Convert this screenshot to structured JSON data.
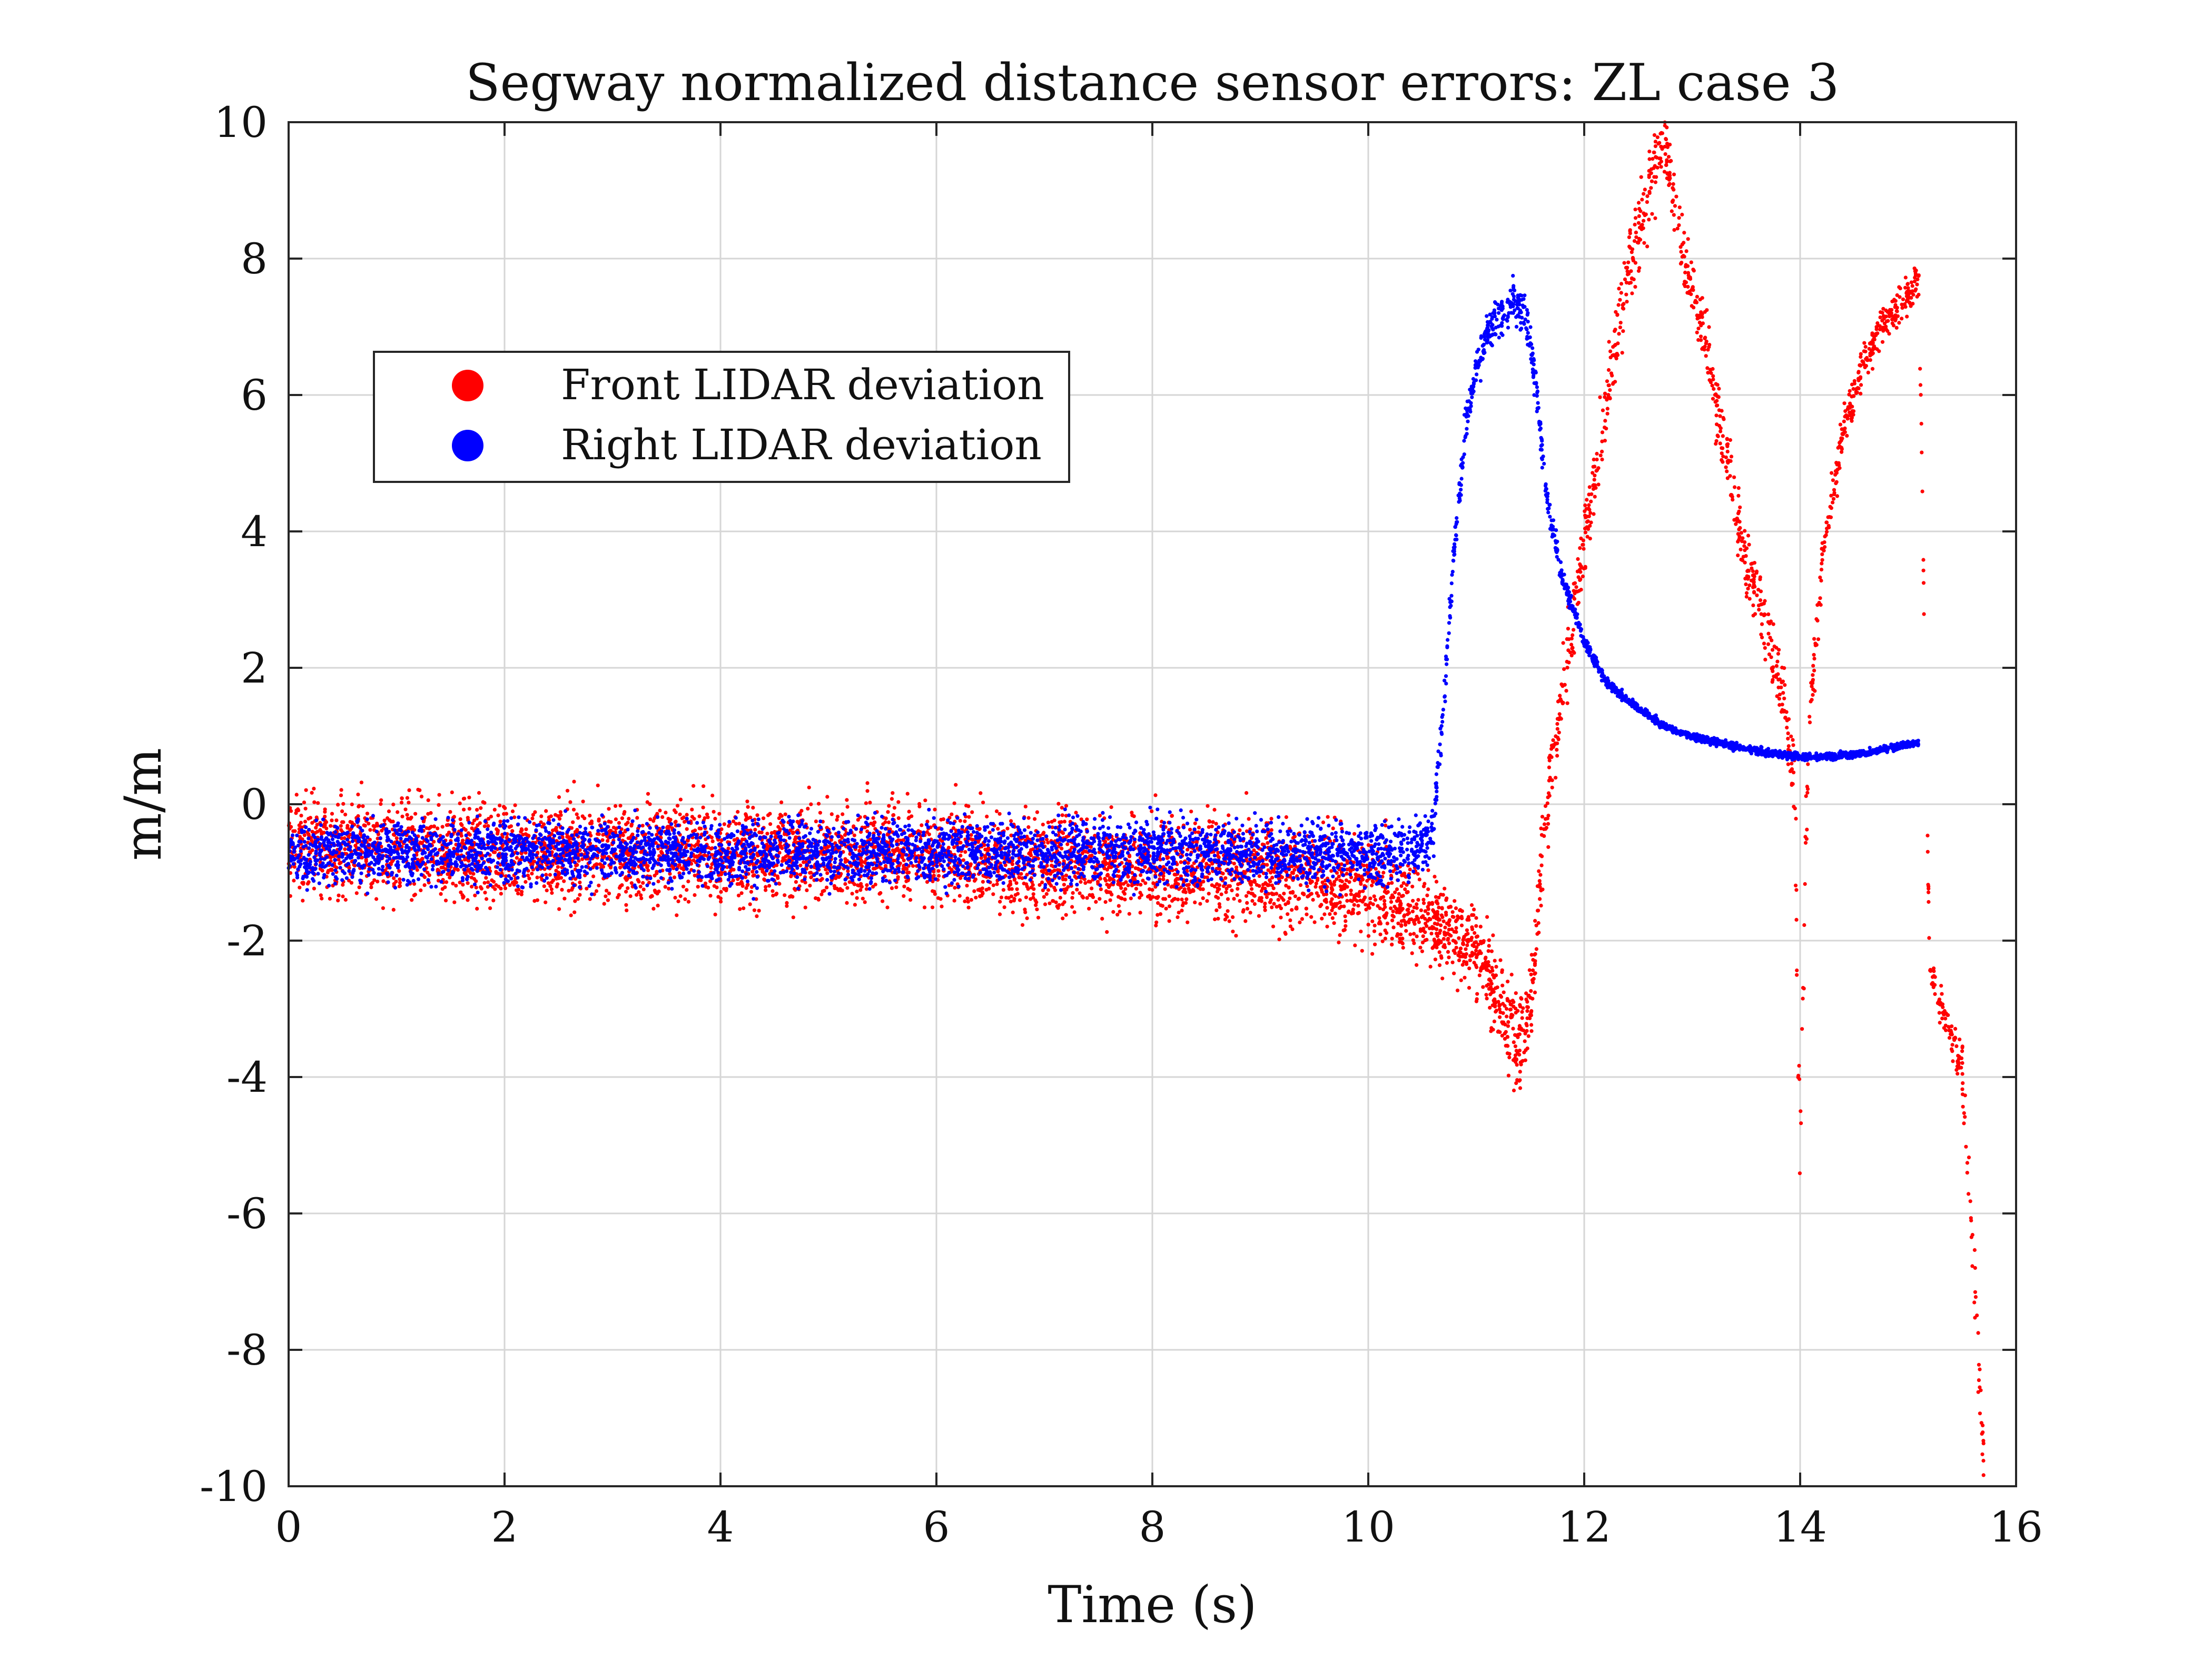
{
  "chart_data": {
    "type": "scatter",
    "title": "Segway normalized distance sensor errors: ZL case 3",
    "xlabel": "Time (s)",
    "ylabel": "m/m",
    "xlim": [
      0,
      16
    ],
    "ylim": [
      -10,
      10
    ],
    "xticks": [
      "0",
      "2",
      "4",
      "6",
      "8",
      "10",
      "12",
      "14",
      "16"
    ],
    "yticks": [
      "-10",
      "-8",
      "-6",
      "-4",
      "-2",
      "0",
      "2",
      "4",
      "6",
      "8",
      "10"
    ],
    "grid": true,
    "legend_position": "upper-left",
    "series": [
      {
        "name": "Front LIDAR deviation",
        "color": "#ff0000",
        "x": [
          0.0,
          0.5,
          1.0,
          1.5,
          2.0,
          2.5,
          3.0,
          3.5,
          4.0,
          4.5,
          5.0,
          5.5,
          6.0,
          6.5,
          7.0,
          7.5,
          8.0,
          8.5,
          9.0,
          9.5,
          10.0,
          10.4,
          10.8,
          11.0,
          11.2,
          11.4,
          11.5,
          11.6,
          11.7,
          11.8,
          12.0,
          12.2,
          12.4,
          12.6,
          12.75,
          12.9,
          13.1,
          13.3,
          13.5,
          13.7,
          13.85,
          13.95,
          14.0,
          14.05,
          14.1,
          14.2,
          14.4,
          14.6,
          14.8,
          15.0,
          15.1,
          15.2,
          15.35,
          15.5,
          15.6,
          15.7
        ],
        "y": [
          -0.6,
          -0.6,
          -0.65,
          -0.7,
          -0.7,
          -0.7,
          -0.7,
          -0.7,
          -0.75,
          -0.75,
          -0.7,
          -0.7,
          -0.75,
          -0.8,
          -0.85,
          -0.9,
          -0.9,
          -0.95,
          -1.0,
          -1.1,
          -1.2,
          -1.5,
          -1.9,
          -2.2,
          -2.8,
          -3.6,
          -3.0,
          -1.0,
          0.5,
          1.8,
          3.8,
          5.8,
          7.8,
          9.0,
          9.7,
          8.2,
          7.0,
          5.2,
          3.6,
          2.5,
          1.6,
          0.3,
          -5.5,
          -0.5,
          1.5,
          3.5,
          5.5,
          6.5,
          7.1,
          7.5,
          7.7,
          -2.4,
          -3.2,
          -3.9,
          -6.5,
          -9.6
        ],
        "noise": [
          1.4,
          1.4,
          1.4,
          1.4,
          1.4,
          1.4,
          1.4,
          1.4,
          1.4,
          1.4,
          1.4,
          1.4,
          1.4,
          1.4,
          1.4,
          1.4,
          1.4,
          1.5,
          1.5,
          1.5,
          1.6,
          1.4,
          1.2,
          1.2,
          1.3,
          1.5,
          1.2,
          1.2,
          1.2,
          1.2,
          1.2,
          1.2,
          1.2,
          1.2,
          0.9,
          1.0,
          1.0,
          1.0,
          0.9,
          0.9,
          0.9,
          1.2,
          2.5,
          1.0,
          0.8,
          0.7,
          0.6,
          0.6,
          0.6,
          0.6,
          0.5,
          0.6,
          0.6,
          0.8,
          1.2,
          1.2
        ],
        "density": [
          70,
          70,
          70,
          70,
          70,
          70,
          70,
          70,
          70,
          70,
          70,
          70,
          70,
          70,
          70,
          70,
          70,
          70,
          70,
          70,
          70,
          70,
          70,
          70,
          70,
          70,
          70,
          50,
          50,
          50,
          50,
          50,
          50,
          50,
          50,
          50,
          50,
          50,
          50,
          50,
          50,
          40,
          30,
          40,
          50,
          50,
          50,
          50,
          50,
          50,
          30,
          40,
          40,
          40,
          40,
          30
        ]
      },
      {
        "name": "Right LIDAR deviation",
        "color": "#0000ff",
        "x": [
          0.0,
          0.5,
          1.0,
          1.5,
          2.0,
          2.5,
          3.0,
          3.5,
          4.0,
          4.5,
          5.0,
          5.5,
          6.0,
          6.5,
          7.0,
          7.5,
          8.0,
          8.5,
          9.0,
          9.5,
          10.0,
          10.3,
          10.6,
          10.7,
          10.8,
          10.9,
          11.0,
          11.1,
          11.3,
          11.45,
          11.55,
          11.65,
          11.8,
          12.0,
          12.2,
          12.5,
          12.8,
          13.1,
          13.4,
          13.7,
          14.0,
          14.3,
          14.6,
          14.9,
          15.1
        ],
        "y": [
          -0.7,
          -0.7,
          -0.7,
          -0.7,
          -0.7,
          -0.7,
          -0.7,
          -0.7,
          -0.7,
          -0.7,
          -0.7,
          -0.7,
          -0.7,
          -0.7,
          -0.7,
          -0.7,
          -0.7,
          -0.7,
          -0.7,
          -0.7,
          -0.7,
          -0.7,
          -0.5,
          1.5,
          3.8,
          5.5,
          6.4,
          6.9,
          7.3,
          7.3,
          6.2,
          4.5,
          3.3,
          2.4,
          1.8,
          1.4,
          1.1,
          0.95,
          0.85,
          0.75,
          0.7,
          0.7,
          0.75,
          0.85,
          0.9
        ],
        "noise": [
          0.9,
          0.9,
          0.9,
          0.9,
          0.9,
          0.9,
          0.9,
          0.9,
          0.9,
          0.9,
          0.9,
          0.9,
          0.9,
          0.9,
          0.9,
          0.9,
          0.9,
          0.9,
          0.9,
          0.9,
          0.9,
          0.9,
          0.9,
          0.5,
          0.5,
          0.5,
          0.5,
          0.5,
          0.6,
          0.7,
          0.5,
          0.4,
          0.3,
          0.2,
          0.15,
          0.12,
          0.1,
          0.1,
          0.1,
          0.1,
          0.1,
          0.1,
          0.1,
          0.1,
          0.1
        ],
        "density": [
          60,
          60,
          60,
          60,
          60,
          60,
          60,
          60,
          60,
          60,
          60,
          60,
          60,
          60,
          60,
          60,
          60,
          60,
          60,
          60,
          60,
          60,
          60,
          60,
          60,
          60,
          60,
          60,
          60,
          60,
          60,
          60,
          60,
          60,
          60,
          60,
          60,
          60,
          60,
          60,
          60,
          60,
          60,
          60,
          60
        ]
      }
    ]
  }
}
